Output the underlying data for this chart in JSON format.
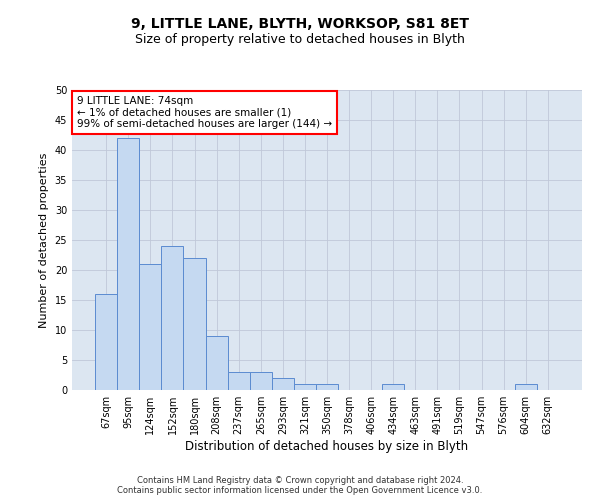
{
  "title": "9, LITTLE LANE, BLYTH, WORKSOP, S81 8ET",
  "subtitle": "Size of property relative to detached houses in Blyth",
  "xlabel": "Distribution of detached houses by size in Blyth",
  "ylabel": "Number of detached properties",
  "categories": [
    "67sqm",
    "95sqm",
    "124sqm",
    "152sqm",
    "180sqm",
    "208sqm",
    "237sqm",
    "265sqm",
    "293sqm",
    "321sqm",
    "350sqm",
    "378sqm",
    "406sqm",
    "434sqm",
    "463sqm",
    "491sqm",
    "519sqm",
    "547sqm",
    "576sqm",
    "604sqm",
    "632sqm"
  ],
  "values": [
    16,
    42,
    21,
    24,
    22,
    9,
    3,
    3,
    2,
    1,
    1,
    0,
    0,
    1,
    0,
    0,
    0,
    0,
    0,
    1,
    0
  ],
  "bar_color": "#c5d9f1",
  "bar_edge_color": "#5b8bd0",
  "annotation_box_text": "9 LITTLE LANE: 74sqm\n← 1% of detached houses are smaller (1)\n99% of semi-detached houses are larger (144) →",
  "annotation_box_color": "white",
  "annotation_box_edge_color": "red",
  "ylim": [
    0,
    50
  ],
  "yticks": [
    0,
    5,
    10,
    15,
    20,
    25,
    30,
    35,
    40,
    45,
    50
  ],
  "grid_color": "#c0c8d8",
  "plot_bg_color": "#dce6f1",
  "footer_text": "Contains HM Land Registry data © Crown copyright and database right 2024.\nContains public sector information licensed under the Open Government Licence v3.0.",
  "title_fontsize": 10,
  "subtitle_fontsize": 9,
  "xlabel_fontsize": 8.5,
  "ylabel_fontsize": 8,
  "tick_fontsize": 7,
  "annotation_fontsize": 7.5,
  "footer_fontsize": 6
}
